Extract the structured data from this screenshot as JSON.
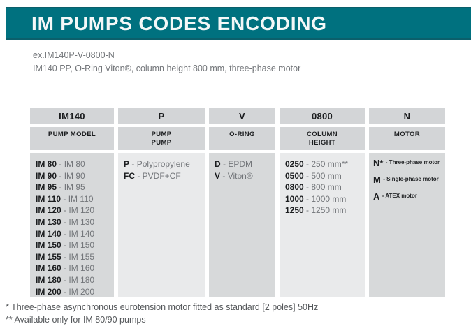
{
  "banner": {
    "title": "IM PUMPS CODES ENCODING"
  },
  "example": {
    "code_line": "ex.IM140P-V-0800-N",
    "description_line": "IM140 PP, O-Ring Viton®, column height 800 mm, three-phase motor"
  },
  "table": {
    "columns": [
      {
        "id": "pump-model",
        "code": "IM140",
        "label_lines": [
          "PUMP MODEL"
        ],
        "entries": [
          {
            "code": "IM 80",
            "desc": "- IM 80"
          },
          {
            "code": "IM 90",
            "desc": "- IM 90"
          },
          {
            "code": "IM 95",
            "desc": "- IM 95"
          },
          {
            "code": "IM 110",
            "desc": "- IM 110"
          },
          {
            "code": "IM 120",
            "desc": "- IM 120"
          },
          {
            "code": "IM 130",
            "desc": "- IM 130"
          },
          {
            "code": "IM 140",
            "desc": "- IM 140"
          },
          {
            "code": "IM 150",
            "desc": "- IM 150"
          },
          {
            "code": "IM 155",
            "desc": "- IM 155"
          },
          {
            "code": "IM 160",
            "desc": "- IM 160"
          },
          {
            "code": "IM 180",
            "desc": "- IM 180"
          },
          {
            "code": "IM 200",
            "desc": "- IM 200"
          }
        ]
      },
      {
        "id": "pump-material",
        "code": "P",
        "label_lines": [
          "PUMP",
          "PUMP"
        ],
        "entries": [
          {
            "code": "P",
            "desc": "- Polypropylene"
          },
          {
            "code": "FC",
            "desc": "- PVDF+CF"
          }
        ]
      },
      {
        "id": "o-ring",
        "code": "V",
        "label_lines": [
          "O-RING"
        ],
        "entries": [
          {
            "code": "D",
            "desc": "- EPDM"
          },
          {
            "code": "V",
            "desc": "- Viton®"
          }
        ]
      },
      {
        "id": "column-height",
        "code": "0800",
        "label_lines": [
          "COLUMN",
          "HEIGHT"
        ],
        "entries": [
          {
            "code": "0250",
            "desc": "- 250 mm**"
          },
          {
            "code": "0500",
            "desc": "- 500 mm"
          },
          {
            "code": "0800",
            "desc": "- 800 mm"
          },
          {
            "code": "1000",
            "desc": "- 1000 mm"
          },
          {
            "code": "1250",
            "desc": "- 1250 mm"
          }
        ]
      },
      {
        "id": "motor",
        "code": "N",
        "label_lines": [
          "MOTOR"
        ],
        "entries": [
          {
            "code": "N*",
            "desc": "- Three-phase motor"
          },
          {
            "code": "M",
            "desc": "- Single-phase motor"
          },
          {
            "code": "A",
            "desc": "- ATEX motor"
          }
        ]
      }
    ]
  },
  "footnotes": [
    "* Three-phase asynchronous eurotension motor fitted as standard [2 poles] 50Hz",
    "** Available only for IM 80/90 pumps"
  ],
  "colors": {
    "banner_teal": "#00717f",
    "banner_edge": "#0b5f6b",
    "header_cell_bg": "#d3d5d7",
    "body_odd_bg": "#d7d9da",
    "body_even_bg": "#e9eaeb",
    "dark_text": "#1b1d1f",
    "gray_text": "#73767a",
    "footnote_text": "#54575a"
  }
}
